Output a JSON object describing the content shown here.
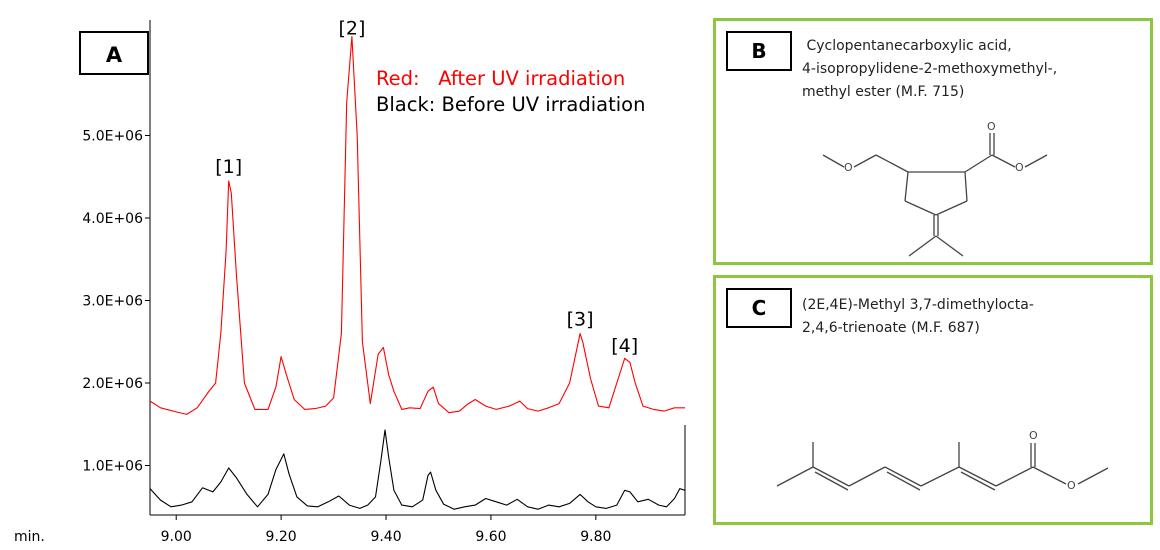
{
  "chart_data": {
    "type": "line",
    "panel_label": "A",
    "x_unit_label": "min.",
    "xlim": [
      8.95,
      9.97
    ],
    "ylim": [
      400000,
      6400000
    ],
    "x_ticks": [
      9.0,
      9.2,
      9.4,
      9.6,
      9.8
    ],
    "x_tick_labels": [
      "9.00",
      "9.20",
      "9.40",
      "9.60",
      "9.80"
    ],
    "y_ticks": [
      1000000,
      2000000,
      3000000,
      4000000,
      5000000
    ],
    "y_tick_labels": [
      "1.0E+06",
      "2.0E+06",
      "3.0E+06",
      "4.0E+06",
      "5.0E+06"
    ],
    "legend": [
      {
        "label": "Red:   After UV irradiation",
        "color": "#ff0000"
      },
      {
        "label": "Black: Before UV irradiation",
        "color": "#000000"
      }
    ],
    "peak_labels": [
      {
        "label": "[1]",
        "x": 9.1,
        "y": 4450000
      },
      {
        "label": "[2]",
        "x": 9.335,
        "y": 6130000
      },
      {
        "label": "[3]",
        "x": 9.77,
        "y": 2600000
      },
      {
        "label": "[4]",
        "x": 9.855,
        "y": 2280000
      }
    ],
    "series": [
      {
        "color": "#ff0000",
        "x": [
          8.95,
          8.97,
          9.0,
          9.02,
          9.04,
          9.06,
          9.075,
          9.085,
          9.095,
          9.1,
          9.105,
          9.115,
          9.13,
          9.15,
          9.175,
          9.19,
          9.2,
          9.21,
          9.225,
          9.245,
          9.265,
          9.285,
          9.3,
          9.315,
          9.325,
          9.335,
          9.345,
          9.355,
          9.37,
          9.385,
          9.395,
          9.405,
          9.415,
          9.43,
          9.445,
          9.465,
          9.48,
          9.49,
          9.5,
          9.52,
          9.54,
          9.555,
          9.57,
          9.59,
          9.61,
          9.635,
          9.655,
          9.67,
          9.69,
          9.71,
          9.73,
          9.75,
          9.765,
          9.77,
          9.775,
          9.79,
          9.805,
          9.825,
          9.84,
          9.855,
          9.865,
          9.875,
          9.89,
          9.91,
          9.93,
          9.95,
          9.97
        ],
        "y": [
          1780000,
          1700000,
          1650000,
          1620000,
          1700000,
          1880000,
          2000000,
          2600000,
          3600000,
          4450000,
          4300000,
          3300000,
          2000000,
          1680000,
          1680000,
          1950000,
          2320000,
          2100000,
          1800000,
          1680000,
          1690000,
          1720000,
          1820000,
          2600000,
          5400000,
          6200000,
          5000000,
          2500000,
          1750000,
          2350000,
          2430000,
          2100000,
          1900000,
          1680000,
          1700000,
          1690000,
          1900000,
          1950000,
          1750000,
          1640000,
          1660000,
          1740000,
          1800000,
          1720000,
          1680000,
          1720000,
          1780000,
          1690000,
          1660000,
          1700000,
          1750000,
          2000000,
          2450000,
          2600000,
          2500000,
          2050000,
          1720000,
          1700000,
          2000000,
          2300000,
          2250000,
          2000000,
          1720000,
          1680000,
          1660000,
          1700000,
          1700000
        ]
      },
      {
        "color": "#000000",
        "x": [
          8.95,
          8.97,
          8.99,
          9.01,
          9.03,
          9.05,
          9.07,
          9.085,
          9.1,
          9.115,
          9.135,
          9.155,
          9.175,
          9.19,
          9.205,
          9.215,
          9.23,
          9.25,
          9.27,
          9.29,
          9.31,
          9.33,
          9.35,
          9.365,
          9.38,
          9.39,
          9.398,
          9.405,
          9.415,
          9.43,
          9.45,
          9.47,
          9.48,
          9.485,
          9.495,
          9.51,
          9.53,
          9.55,
          9.57,
          9.59,
          9.61,
          9.63,
          9.65,
          9.67,
          9.69,
          9.71,
          9.73,
          9.75,
          9.77,
          9.785,
          9.8,
          9.82,
          9.84,
          9.855,
          9.865,
          9.88,
          9.9,
          9.92,
          9.935,
          9.95,
          9.96,
          9.97
        ],
        "y": [
          720000,
          580000,
          500000,
          520000,
          560000,
          730000,
          680000,
          800000,
          970000,
          850000,
          650000,
          500000,
          650000,
          950000,
          1140000,
          900000,
          620000,
          510000,
          500000,
          560000,
          630000,
          520000,
          480000,
          520000,
          620000,
          1050000,
          1430000,
          1100000,
          700000,
          520000,
          500000,
          580000,
          880000,
          920000,
          700000,
          530000,
          470000,
          500000,
          520000,
          600000,
          560000,
          520000,
          590000,
          500000,
          470000,
          520000,
          500000,
          540000,
          650000,
          560000,
          500000,
          480000,
          520000,
          700000,
          680000,
          560000,
          590000,
          520000,
          500000,
          600000,
          720000,
          700000
        ]
      }
    ]
  },
  "panel_b": {
    "letter": "B",
    "name_lines": [
      " Cyclopentanecarboxylic acid,",
      "4-isopropylidene-2-methoxymethyl-,",
      "methyl ester (M.F. 715)"
    ]
  },
  "panel_c": {
    "letter": "C",
    "name_lines": [
      "(2E,4E)-Methyl 3,7-dimethylocta-",
      "2,4,6-trienoate (M.F. 687)"
    ]
  },
  "structure_atoms": {
    "b_o_carbonyl": "O",
    "b_o_ester": "O",
    "b_o_ether": "O",
    "c_o_carbonyl": "O",
    "c_o_ester": "O"
  }
}
